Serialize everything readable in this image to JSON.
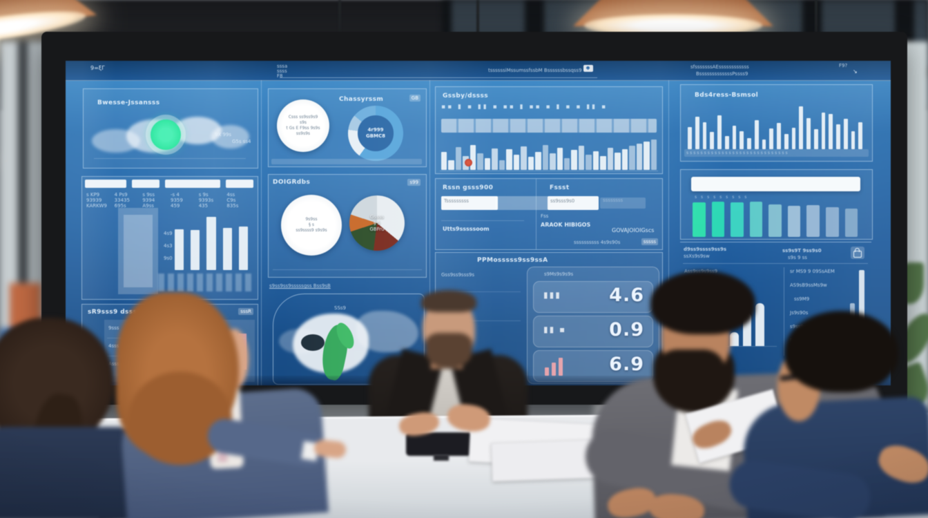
{
  "colors": {
    "bezel": "#17181a",
    "screenTop": "#3f8cc9",
    "screenMid": "#2268ab",
    "screenDeep": "#174a82",
    "panelLine": "rgba(215,235,252,0.5)",
    "panelFill": "rgba(255,255,255,0.06)",
    "barWhite": "#f2f7fb",
    "accentGreen": "#2ee6a0",
    "donutBlue": "#5aa7dc",
    "redDot": "#b03228",
    "pinkBar": "#e6a3ac",
    "copper": "#b06435",
    "tableTop": "#e8eaed",
    "textLight": "rgba(238,247,255,0.92)",
    "skin": "#cf9a78"
  },
  "screen": {
    "topbar": {
      "corner_glyph": "9=ξΓ",
      "mini_1": "sssa",
      "mini_2": "ssss",
      "mini_3": "F8",
      "center_text": "tssssssiMssumssfssbM Bssssssbssqss9 ***",
      "right_line1": "sfsssssssAEssssssssssss",
      "right_line2": "BsssssssssssssPssss9",
      "right_icon1": "F9?",
      "arrow": "↘"
    },
    "panelA": {
      "title": "Bwesse-Jssansss",
      "note1": "9X 99s",
      "note2": "G5s ss4"
    },
    "panelB": {
      "cols": [
        [
          "s KP9",
          "93939",
          "KARKW9"
        ],
        [
          "4 Ps9",
          "33435",
          "695s"
        ],
        [
          "s 9ss",
          "9394",
          "A9ss"
        ],
        [
          "-s 4",
          "9359",
          "459"
        ],
        [
          "s 9s",
          "9393s",
          "435"
        ],
        [
          "4ss",
          "C9s",
          "835s"
        ]
      ],
      "side": [
        "4s9",
        "4s3",
        "9s0"
      ],
      "values": [
        66,
        64,
        86,
        68,
        70
      ]
    },
    "panelC": {
      "title": "sR9sss9 dssssss3s",
      "badge": "sssR",
      "rows": [
        "9sss",
        "4sss",
        "Asss"
      ]
    },
    "panelD1": {
      "title": "Chassyrssm",
      "badge": "GB",
      "circle": [
        "Csss ss9ss9s9",
        "s9s",
        "t Gs E F9ss 9s9s",
        "ss9s9s"
      ],
      "donut": [
        "4r999",
        "GBMC8"
      ]
    },
    "panelD2": {
      "title": "DOIGRdbs",
      "badge": "s99",
      "circle": [
        "9s9ss",
        "§ s",
        "ss9ssss9 s9s9s"
      ],
      "pie": [
        "Gssss",
        "§ 5",
        "GBFru"
      ]
    },
    "panelMap": {
      "title": "s9ss9ss9sssssgss Bss9sB",
      "note": "SSs9"
    },
    "panelE": {
      "title": "Gssby/dssss",
      "icons": "▪▪ ▮  ▪ ▮▮  ▪  ▪▪  ▮  ▪▪   ▪  ▮  ▪ ▪   ▮▮  ▪",
      "values": [
        55,
        30,
        68,
        42,
        75,
        50,
        35,
        65,
        30,
        62,
        45,
        70,
        40,
        55,
        75,
        50,
        66,
        36,
        60,
        72,
        46,
        56,
        42,
        66,
        52,
        62,
        72,
        80,
        86,
        92
      ]
    },
    "panelF": {
      "left_title": "Rssn gsss900",
      "left_input": "Tsssssssss",
      "left_label": "Utts9sssssoom",
      "right_title": "Fssst",
      "right_input": "ss9sss9s0",
      "right_faint": "ssssssss",
      "sub": "Fss",
      "label1": "ARAOK HIBIGOS",
      "label2": "GOVAJOIOIGscs",
      "bottom": "ssssssssss  4s9s90s",
      "badge": "sssss"
    },
    "panelG": {
      "title": "PPMosssss9ss9ssA",
      "sub": "s9Ms9s9s9s",
      "left_rows": [
        "Gss9ss9sss9s",
        "9sss9 s9s",
        "ss9s9ss9s"
      ],
      "kpis": [
        {
          "label": "▮▮▮",
          "value": "4.6"
        },
        {
          "label": "▮▮ ▪",
          "value": "0.9"
        },
        {
          "label": "",
          "value": "6.9"
        }
      ]
    },
    "panelH": {
      "title": "Bds4ress-Bsmsol",
      "axis": "sssssssssssssssssssssssssssss",
      "values": [
        50,
        72,
        60,
        38,
        76,
        30,
        52,
        40,
        24,
        64,
        22,
        46,
        58,
        34,
        48,
        95,
        70,
        44,
        82,
        78,
        56,
        68,
        40,
        60
      ]
    },
    "panelI": {
      "ticks": "s     s     s     s     s     s     s     s     s",
      "values": [
        93,
        95,
        92,
        94,
        87,
        84,
        86,
        80,
        76
      ],
      "colors": [
        "#2ee8ac",
        "#2ce2b6",
        "#3edcc4",
        "#62d2cc",
        "#8ac6d4",
        "#a4c4dc",
        "#9cbcd8",
        "#90b2d2",
        "#84aacc"
      ]
    },
    "panelJ": {
      "head1": "d9ss9ssss9ss9s",
      "head2": "ssXs9s9sw",
      "mid1": "ss9s9T 9ss9s0",
      "mid2": "s9s 9 ss",
      "left_label": "Ass9ss9s9ss9",
      "left_values": [
        25,
        60,
        78
      ],
      "rows": [
        "sr MS9 9 09SsAEM",
        "AS9sB9ssMs9w",
        "ss9M9",
        "Js9s90s",
        "s9ss9sss9 sM99s",
        "FsTs9ssM"
      ]
    }
  }
}
